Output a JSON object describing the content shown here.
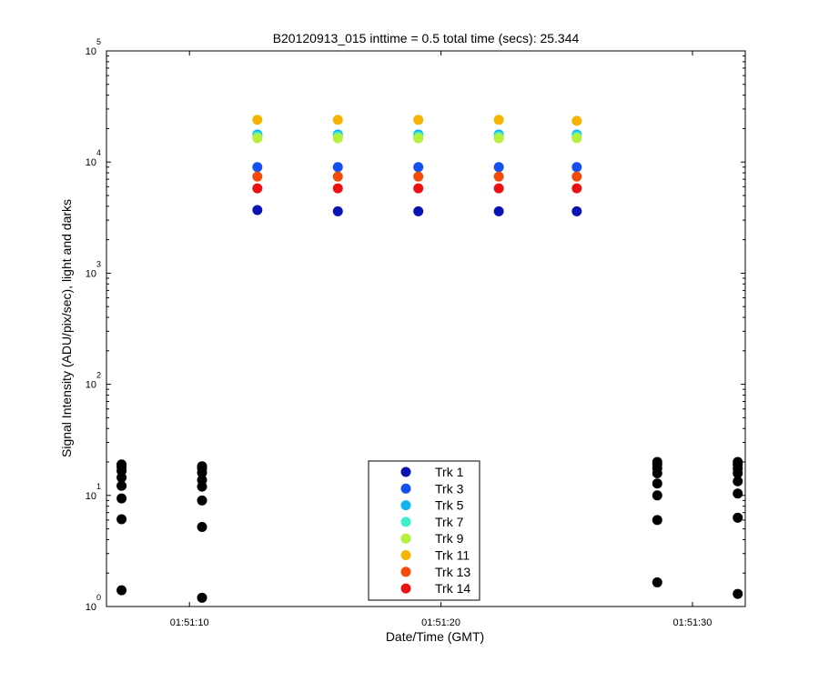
{
  "chart_data": {
    "type": "scatter",
    "title": "B20120913_015 inttime = 0.5 total time (secs): 25.344",
    "xlabel": "Date/Time (GMT)",
    "ylabel": "Signal Intensity (ADU/pix/sec), light and darks",
    "yscale": "log",
    "ylim": [
      1,
      100000
    ],
    "y_ticks": [
      {
        "base": "10",
        "exp": "0",
        "value": 1
      },
      {
        "base": "10",
        "exp": "1",
        "value": 10
      },
      {
        "base": "10",
        "exp": "2",
        "value": 100
      },
      {
        "base": "10",
        "exp": "3",
        "value": 1000
      },
      {
        "base": "10",
        "exp": "4",
        "value": 10000
      },
      {
        "base": "10",
        "exp": "5",
        "value": 100000
      }
    ],
    "xlim": [
      "01:51:06.7",
      "01:51:32.1"
    ],
    "x_ticks": [
      "01:51:10",
      "01:51:20",
      "01:51:30"
    ],
    "grid": false,
    "legend_position": "bottom-center",
    "series": [
      {
        "name": "Trk 1",
        "color": "#0a14b4",
        "x": [
          "01:51:12.7",
          "01:51:15.9",
          "01:51:19.1",
          "01:51:22.3",
          "01:51:25.4"
        ],
        "y": [
          3700,
          3600,
          3600,
          3600,
          3600
        ]
      },
      {
        "name": "Trk 3",
        "color": "#1450f0",
        "x": [
          "01:51:12.7",
          "01:51:15.9",
          "01:51:19.1",
          "01:51:22.3",
          "01:51:25.4"
        ],
        "y": [
          9000,
          9000,
          9000,
          9000,
          9000
        ]
      },
      {
        "name": "Trk 5",
        "color": "#0fb4f0",
        "x": [
          "01:51:12.7",
          "01:51:15.9",
          "01:51:19.1",
          "01:51:22.3",
          "01:51:25.4"
        ],
        "y": [
          17700,
          17700,
          17700,
          17700,
          17700
        ]
      },
      {
        "name": "Trk 7",
        "color": "#3cf0c8",
        "x": [
          "01:51:12.7",
          "01:51:15.9",
          "01:51:19.1",
          "01:51:22.3",
          "01:51:25.4"
        ],
        "y": [
          17000,
          17000,
          17000,
          17000,
          17000
        ]
      },
      {
        "name": "Trk 9",
        "color": "#b4f03c",
        "x": [
          "01:51:12.7",
          "01:51:15.9",
          "01:51:19.1",
          "01:51:22.3",
          "01:51:25.4"
        ],
        "y": [
          16400,
          16400,
          16400,
          16400,
          16400
        ]
      },
      {
        "name": "Trk 11",
        "color": "#f5b400",
        "x": [
          "01:51:12.7",
          "01:51:15.9",
          "01:51:19.1",
          "01:51:22.3",
          "01:51:25.4"
        ],
        "y": [
          24000,
          24000,
          24000,
          24000,
          23500
        ]
      },
      {
        "name": "Trk 13",
        "color": "#f54b0a",
        "x": [
          "01:51:12.7",
          "01:51:15.9",
          "01:51:19.1",
          "01:51:22.3",
          "01:51:25.4"
        ],
        "y": [
          7400,
          7400,
          7400,
          7400,
          7400
        ]
      },
      {
        "name": "Trk 14",
        "color": "#ee1010",
        "x": [
          "01:51:12.7",
          "01:51:15.9",
          "01:51:19.1",
          "01:51:22.3",
          "01:51:25.4"
        ],
        "y": [
          5800,
          5800,
          5800,
          5800,
          5800
        ]
      }
    ],
    "darks": {
      "color": "#000000",
      "points": [
        {
          "x": "01:51:07.3",
          "y": [
            1.4,
            6.1,
            9.4,
            12.2,
            14.5,
            16.6,
            18.0,
            19.0
          ]
        },
        {
          "x": "01:51:10.5",
          "y": [
            1.2,
            5.2,
            9.0,
            12.0,
            13.8,
            16.0,
            17.5,
            18.3
          ]
        },
        {
          "x": "01:51:28.6",
          "y": [
            1.65,
            6.0,
            10.0,
            12.8,
            15.8,
            17.5,
            19.0,
            20.0
          ]
        },
        {
          "x": "01:51:31.8",
          "y": [
            1.3,
            6.3,
            10.4,
            13.4,
            15.8,
            17.4,
            19.0,
            20.0
          ]
        }
      ]
    }
  }
}
